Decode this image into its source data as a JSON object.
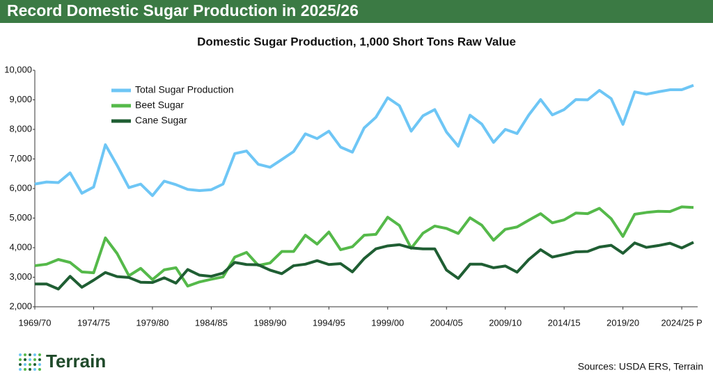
{
  "header": {
    "title": "Record Domestic Sugar Production in 2025/26"
  },
  "footer": {
    "logo": "Terrain",
    "source": "Sources: USDA ERS, Terrain"
  },
  "chart_data": {
    "type": "line",
    "title": "Domestic Sugar Production, 1,000 Short Tons Raw Value",
    "categories": [
      "1969/70",
      null,
      null,
      null,
      null,
      "1974/75",
      null,
      null,
      null,
      null,
      "1979/80",
      null,
      null,
      null,
      null,
      "1984/85",
      null,
      null,
      null,
      null,
      "1989/90",
      null,
      null,
      null,
      null,
      "1994/95",
      null,
      null,
      null,
      null,
      "1999/00",
      null,
      null,
      null,
      null,
      "2004/05",
      null,
      null,
      null,
      null,
      "2009/10",
      null,
      null,
      null,
      null,
      "2014/15",
      null,
      null,
      null,
      null,
      "2019/20",
      null,
      null,
      null,
      null,
      "2024/25 P",
      null
    ],
    "series": [
      {
        "name": "Total Sugar Production",
        "color": "#6ec6f5",
        "values": [
          6150,
          6220,
          6200,
          6530,
          5840,
          6050,
          7480,
          6780,
          6030,
          6150,
          5760,
          6250,
          6130,
          5970,
          5930,
          5960,
          6150,
          7180,
          7270,
          6820,
          6720,
          6980,
          7250,
          7850,
          7690,
          7940,
          7400,
          7230,
          8050,
          8410,
          9070,
          8800,
          7940,
          8460,
          8670,
          7910,
          7430,
          8480,
          8180,
          7560,
          8000,
          7860,
          8490,
          9010,
          8490,
          8670,
          9010,
          9000,
          9320,
          9040,
          8170,
          9270,
          9190,
          9270,
          9340,
          9340,
          9490
        ]
      },
      {
        "name": "Beet Sugar",
        "color": "#55b94a",
        "values": [
          3390,
          3440,
          3600,
          3500,
          3180,
          3150,
          4330,
          3800,
          3050,
          3300,
          2920,
          3250,
          3320,
          2700,
          2840,
          2930,
          3010,
          3680,
          3840,
          3400,
          3480,
          3870,
          3870,
          4420,
          4120,
          4530,
          3930,
          4030,
          4420,
          4450,
          5030,
          4750,
          3980,
          4490,
          4730,
          4650,
          4480,
          5010,
          4760,
          4250,
          4620,
          4700,
          4930,
          5150,
          4840,
          4940,
          5170,
          5150,
          5330,
          4980,
          4380,
          5130,
          5190,
          5230,
          5220,
          5380,
          5360
        ]
      },
      {
        "name": "Cane Sugar",
        "color": "#1f5e33",
        "values": [
          2770,
          2770,
          2600,
          3030,
          2660,
          2900,
          3160,
          3020,
          2990,
          2830,
          2820,
          2980,
          2800,
          3260,
          3070,
          3030,
          3140,
          3500,
          3430,
          3420,
          3240,
          3120,
          3390,
          3440,
          3560,
          3430,
          3460,
          3180,
          3630,
          3960,
          4060,
          4100,
          3990,
          3960,
          3960,
          3240,
          2960,
          3440,
          3440,
          3320,
          3380,
          3170,
          3600,
          3930,
          3680,
          3770,
          3860,
          3870,
          4020,
          4080,
          3810,
          4160,
          4010,
          4070,
          4150,
          3990,
          4180
        ]
      }
    ],
    "ylim": [
      2000,
      10000
    ],
    "yticks": [
      {
        "value": 2000,
        "label": "2,000"
      },
      {
        "value": 3000,
        "label": "3,000"
      },
      {
        "value": 4000,
        "label": "4,000"
      },
      {
        "value": 5000,
        "label": "5,000"
      },
      {
        "value": 6000,
        "label": "6,000"
      },
      {
        "value": 7000,
        "label": "7,000"
      },
      {
        "value": 8000,
        "label": "8,000"
      },
      {
        "value": 9000,
        "label": "9,000"
      },
      {
        "value": 10000,
        "label": "10,000"
      }
    ],
    "grid": false,
    "legend": "upper left"
  }
}
